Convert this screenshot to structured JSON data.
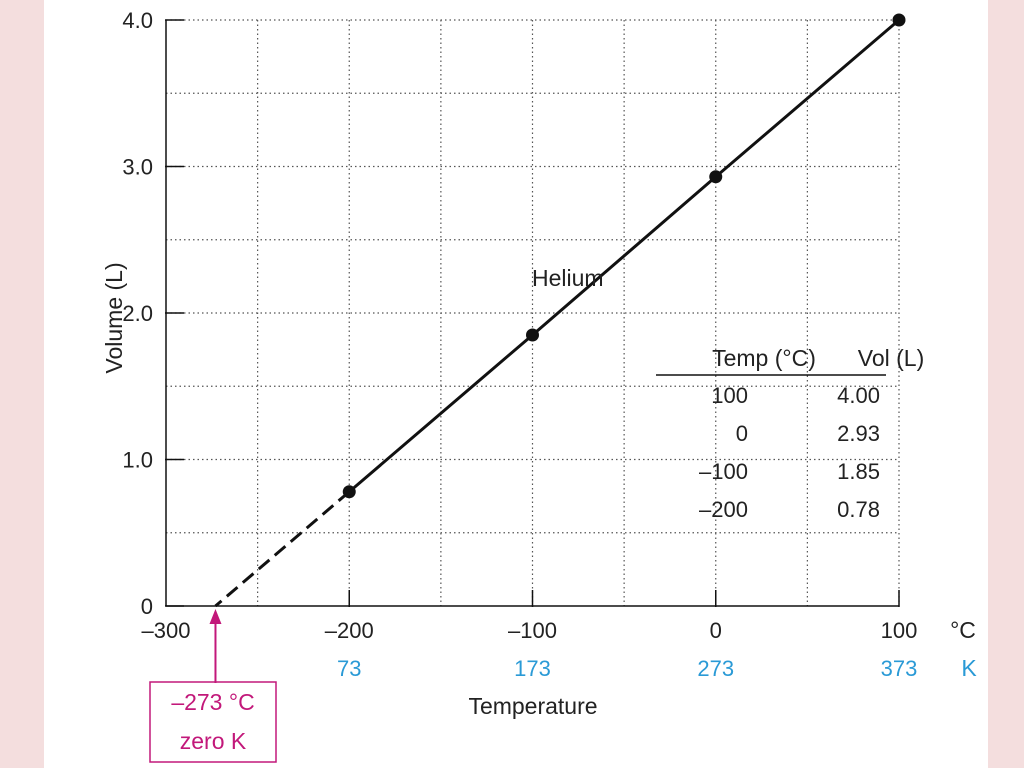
{
  "chart_data": {
    "type": "line",
    "ylabel": "Volume (L)",
    "xlabel": "Temperature",
    "x_unit_celsius": "°C",
    "x_unit_kelvin": "K",
    "xlim": [
      -300,
      100
    ],
    "ylim": [
      0,
      4.0
    ],
    "grid": true,
    "x_ticks": [
      -300,
      -200,
      -100,
      0,
      100
    ],
    "x_tick_labels": [
      "–300",
      "–200",
      "–100",
      "0",
      "100"
    ],
    "kelvin_ticks": [
      -200,
      -100,
      0,
      100
    ],
    "kelvin_tick_labels": [
      "73",
      "173",
      "273",
      "373"
    ],
    "y_ticks": [
      0,
      1.0,
      2.0,
      3.0,
      4.0
    ],
    "y_tick_labels": [
      "0",
      "1.0",
      "2.0",
      "3.0",
      "4.0"
    ],
    "series": [
      {
        "name": "Helium",
        "x": [
          100,
          0,
          -100,
          -200
        ],
        "y": [
          4.0,
          2.93,
          1.85,
          0.78
        ]
      }
    ],
    "extrapolation": {
      "x": [
        -200,
        -273
      ],
      "y": [
        0.78,
        0
      ],
      "style": "dashed"
    },
    "annotation": {
      "x": -273,
      "line1": "–273 °C",
      "line2": "zero K",
      "color": "#c2187a"
    },
    "table": {
      "headers": [
        "Temp (°C)",
        "Vol (L)"
      ],
      "rows": [
        [
          "100",
          "4.00"
        ],
        [
          "0",
          "2.93"
        ],
        [
          "–100",
          "1.85"
        ],
        [
          "–200",
          "0.78"
        ]
      ]
    },
    "colors": {
      "kelvin": "#2a9ad6",
      "annotation": "#c2187a",
      "line": "#111111"
    }
  }
}
